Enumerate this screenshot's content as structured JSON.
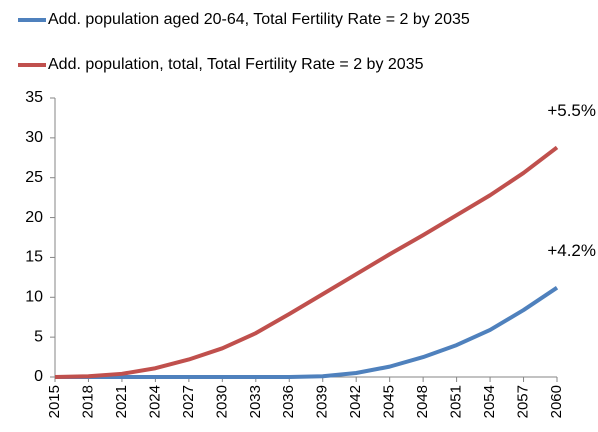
{
  "chart_data": {
    "type": "line",
    "categories": [
      2015,
      2018,
      2021,
      2024,
      2027,
      2030,
      2033,
      2036,
      2039,
      2042,
      2045,
      2048,
      2051,
      2054,
      2057,
      2060
    ],
    "series": [
      {
        "name": "Add. population aged 20-64, Total Fertility Rate = 2 by 2035",
        "color": "#4f81bd",
        "values": [
          0,
          0,
          0,
          0,
          0,
          0,
          0,
          0,
          0.1,
          0.5,
          1.3,
          2.5,
          4.0,
          5.9,
          8.4,
          11.2
        ],
        "end_label": "+4.2%"
      },
      {
        "name": "Add. population, total, Total Fertility Rate = 2 by 2035",
        "color": "#c0504d",
        "values": [
          0,
          0.1,
          0.4,
          1.1,
          2.2,
          3.6,
          5.5,
          7.9,
          10.4,
          12.9,
          15.4,
          17.8,
          20.3,
          22.8,
          25.6,
          28.8
        ],
        "end_label": "+5.5%"
      }
    ],
    "ylim": [
      0,
      35
    ],
    "yticks": [
      0,
      5,
      10,
      15,
      20,
      25,
      30,
      35
    ],
    "grid": false
  }
}
